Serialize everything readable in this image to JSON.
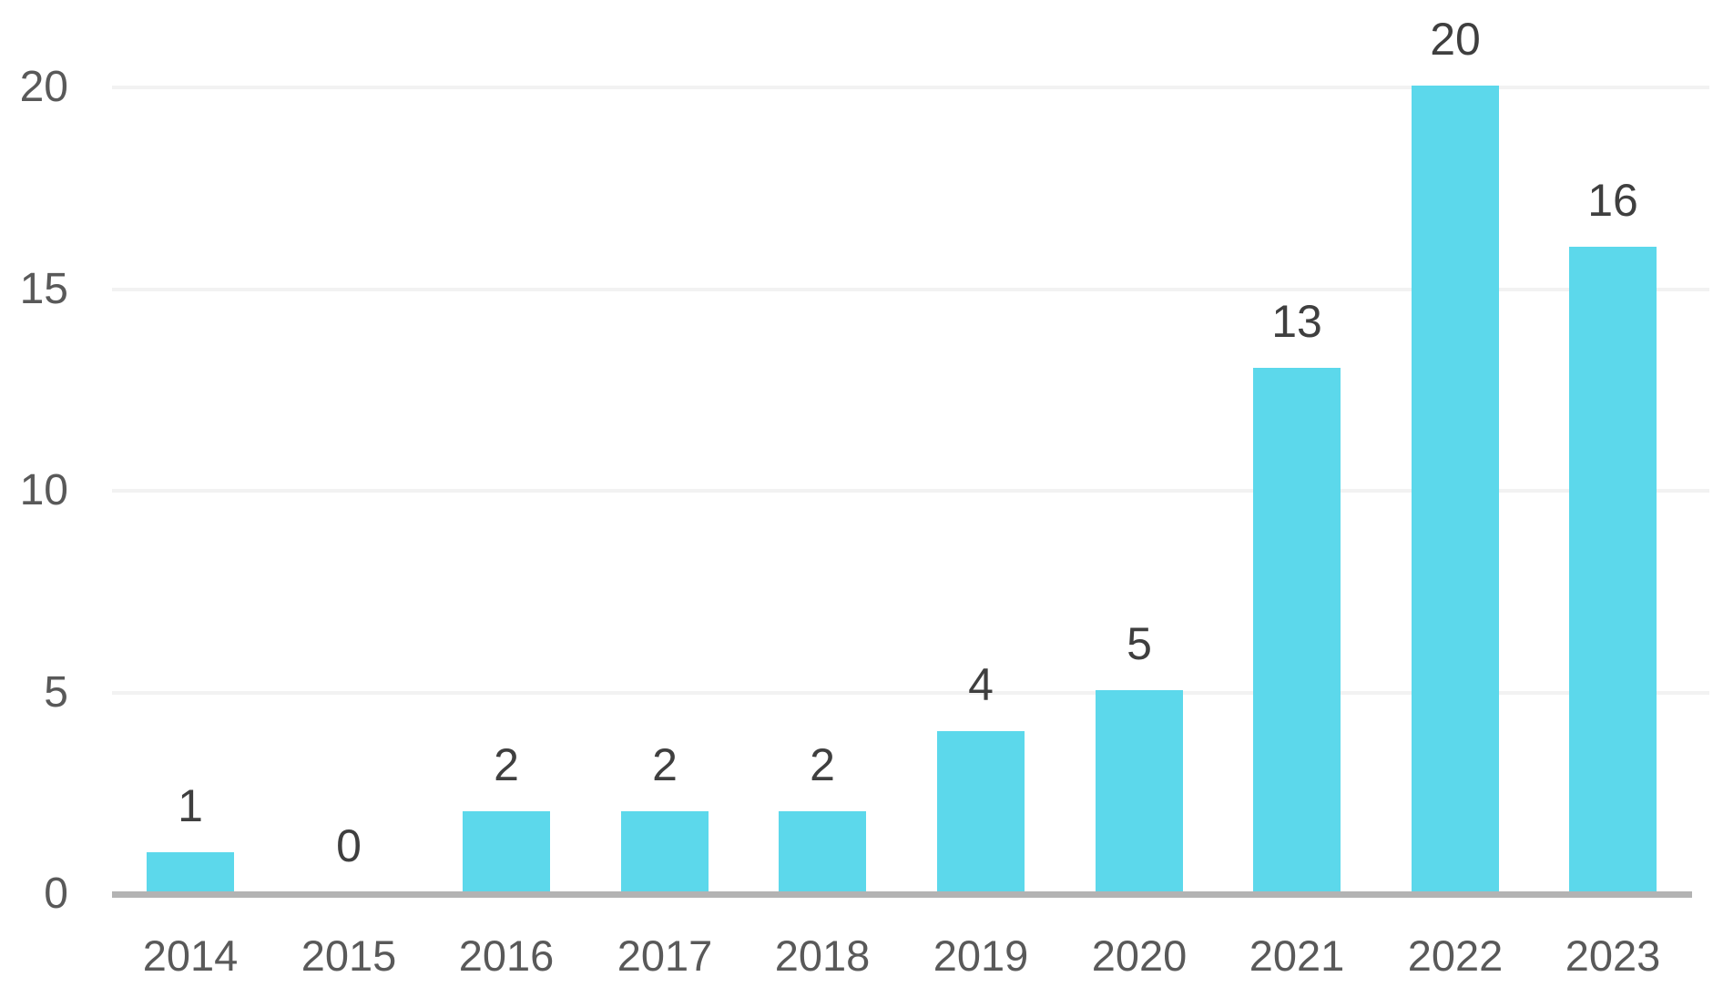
{
  "chart_data": {
    "type": "bar",
    "title": "",
    "xlabel": "",
    "ylabel": "",
    "categories": [
      "2014",
      "2015",
      "2016",
      "2017",
      "2018",
      "2019",
      "2020",
      "2021",
      "2022",
      "2023"
    ],
    "values": [
      1,
      0,
      2,
      2,
      2,
      4,
      5,
      13,
      20,
      16
    ],
    "data_labels": [
      "1",
      "0",
      "2",
      "2",
      "2",
      "4",
      "5",
      "13",
      "20",
      "16"
    ],
    "ylim": [
      0,
      20
    ],
    "yticks": [
      0,
      5,
      10,
      15,
      20
    ],
    "ytick_labels": [
      "0",
      "5",
      "10",
      "15",
      "20"
    ],
    "grid": "horizontal-only",
    "gridline_values": [
      5,
      10,
      15,
      20
    ],
    "legend": "none",
    "bar_labels_position": "above-bars",
    "colors": {
      "bar": "#5cd8eb",
      "axis_line": "#b3b3b3",
      "gridline": "#f2f2f2",
      "tick_label": "#595959",
      "data_label": "#3f3f3f",
      "background": "#ffffff"
    }
  }
}
